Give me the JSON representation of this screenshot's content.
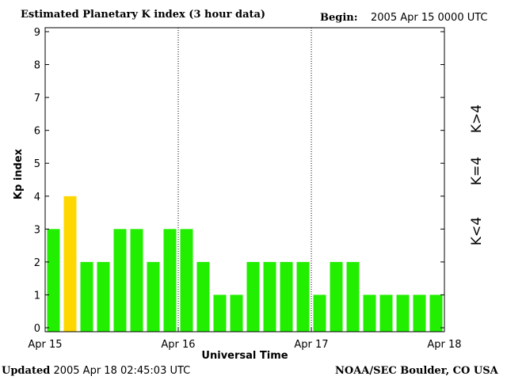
{
  "header": {
    "title": "Estimated Planetary K index (3 hour data)",
    "begin_label": "Begin:",
    "begin_value": "2005 Apr 15 0000 UTC"
  },
  "footer": {
    "updated_label": "Updated",
    "updated_value": "2005 Apr 18 02:45:03 UTC",
    "source": "NOAA/SEC Boulder, CO USA"
  },
  "legend": {
    "items": [
      {
        "label": "K>4",
        "color": "#ff2a00"
      },
      {
        "label": "K=4",
        "color": "#ffd700"
      },
      {
        "label": "K<4",
        "color": "#22ee00"
      }
    ]
  },
  "colors": {
    "below": "#22ee00",
    "equal": "#ffd700",
    "above": "#ff2a00"
  },
  "chart_data": {
    "type": "bar",
    "title": "Estimated Planetary K index (3 hour data)",
    "xlabel": "Universal Time",
    "ylabel": "Kp index",
    "ylim": [
      0,
      9
    ],
    "yticks": [
      0,
      1,
      2,
      3,
      4,
      5,
      6,
      7,
      8,
      9
    ],
    "x_tick_labels": [
      "Apr 15",
      "Apr 16",
      "Apr 17",
      "Apr 18"
    ],
    "values": [
      3,
      4,
      2,
      2,
      3,
      3,
      2,
      3,
      3,
      2,
      1,
      1,
      2,
      2,
      2,
      2,
      1,
      2,
      2,
      1,
      1,
      1,
      1,
      1
    ]
  }
}
